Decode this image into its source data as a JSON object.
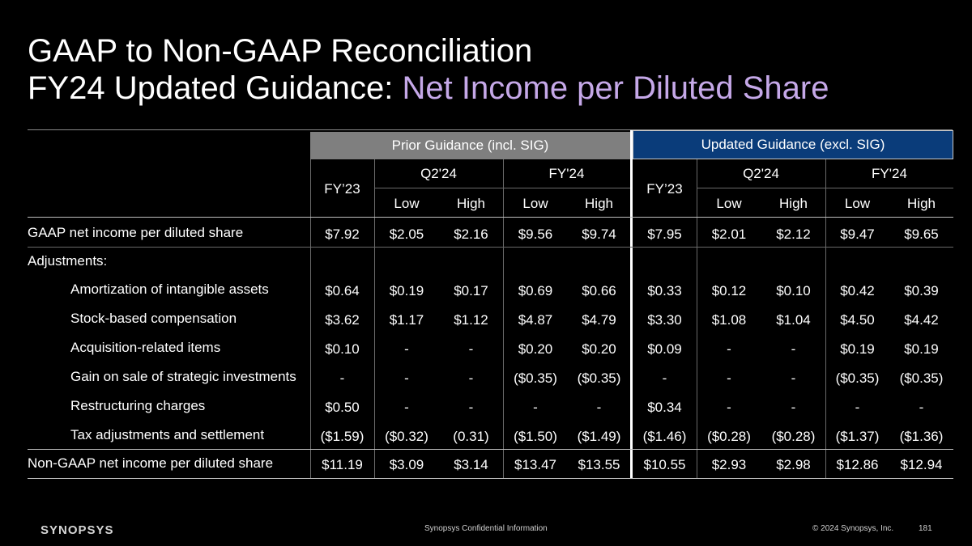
{
  "title": {
    "line1": "GAAP to Non-GAAP Reconciliation",
    "line2_prefix": "FY24 Updated Guidance: ",
    "line2_accent": "Net Income per Diluted Share"
  },
  "colors": {
    "accent": "#c5a8e8",
    "prior_band": "#7f7f7f",
    "updated_band": "#0a3c7a",
    "background": "#000000"
  },
  "table": {
    "groups": [
      "Prior Guidance (incl. SIG)",
      "Updated Guidance (excl. SIG)"
    ],
    "fy23_label": "FY’23",
    "periods": [
      "Q2'24",
      "FY'24",
      "Q2'24",
      "FY'24"
    ],
    "subheads": [
      "Low",
      "High",
      "Low",
      "High",
      "Low",
      "High",
      "Low",
      "High"
    ],
    "rows": [
      {
        "label": "GAAP net income per diluted share",
        "indent": false,
        "values": [
          "$7.92",
          "$2.05",
          "$2.16",
          "$9.56",
          "$9.74",
          "$7.95",
          "$2.01",
          "$2.12",
          "$9.47",
          "$9.65"
        ]
      },
      {
        "label": "Adjustments:",
        "indent": false,
        "values": [
          "",
          "",
          "",
          "",
          "",
          "",
          "",
          "",
          "",
          ""
        ]
      },
      {
        "label": "Amortization of intangible assets",
        "indent": true,
        "values": [
          "$0.64",
          "$0.19",
          "$0.17",
          "$0.69",
          "$0.66",
          "$0.33",
          "$0.12",
          "$0.10",
          "$0.42",
          "$0.39"
        ]
      },
      {
        "label": "Stock-based compensation",
        "indent": true,
        "values": [
          "$3.62",
          "$1.17",
          "$1.12",
          "$4.87",
          "$4.79",
          "$3.30",
          "$1.08",
          "$1.04",
          "$4.50",
          "$4.42"
        ]
      },
      {
        "label": "Acquisition-related items",
        "indent": true,
        "values": [
          "$0.10",
          "-",
          "-",
          "$0.20",
          "$0.20",
          "$0.09",
          "-",
          "-",
          "$0.19",
          "$0.19"
        ]
      },
      {
        "label": "Gain on sale of strategic investments",
        "indent": true,
        "values": [
          "-",
          "-",
          "-",
          "($0.35)",
          "($0.35)",
          "-",
          "-",
          "-",
          "($0.35)",
          "($0.35)"
        ]
      },
      {
        "label": "Restructuring charges",
        "indent": true,
        "values": [
          "$0.50",
          "-",
          "-",
          "-",
          "-",
          "$0.34",
          "-",
          "-",
          "-",
          "-"
        ]
      },
      {
        "label": "Tax adjustments and settlement",
        "indent": true,
        "values": [
          "($1.59)",
          "($0.32)",
          "(0.31)",
          "($1.50)",
          "($1.49)",
          "($1.46)",
          "($0.28)",
          "($0.28)",
          "($1.37)",
          "($1.36)"
        ]
      },
      {
        "label": "Non-GAAP net income per diluted share",
        "indent": false,
        "values": [
          "$11.19",
          "$3.09",
          "$3.14",
          "$13.47",
          "$13.55",
          "$10.55",
          "$2.93",
          "$2.98",
          "$12.86",
          "$12.94"
        ]
      }
    ]
  },
  "footer": {
    "logo": "SYNOPSYS",
    "confidential": "Synopsys Confidential Information",
    "copyright": "© 2024 Synopsys, Inc.",
    "page": "181"
  }
}
